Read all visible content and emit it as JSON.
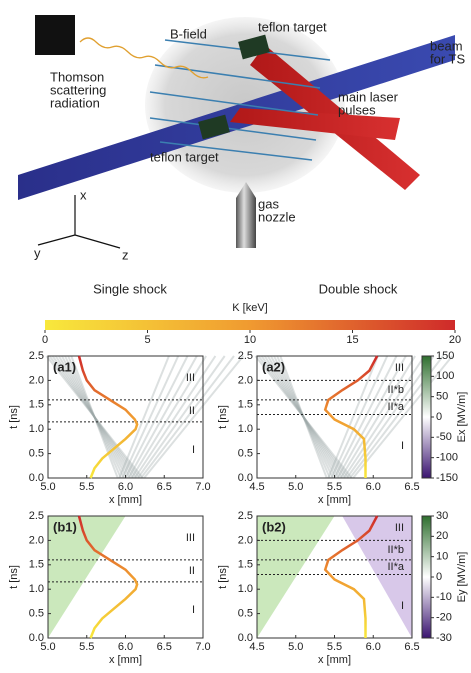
{
  "schematic": {
    "labels": [
      [
        "B-field"
      ],
      [
        "teflon target"
      ],
      [
        "beam",
        "for TS"
      ],
      [
        "Thomson",
        "scattering",
        "radiation"
      ],
      [
        "main laser",
        "pulses"
      ],
      [
        "teflon target"
      ],
      [
        "gas",
        "nozzle"
      ]
    ],
    "axes": [
      "x",
      "y",
      "z"
    ]
  },
  "column_titles": [
    "Single shock",
    "Double shock"
  ],
  "colorbar_k": {
    "label": "K [keV]",
    "lim": [
      0,
      20
    ],
    "ticks": [
      0,
      5,
      10,
      15,
      20
    ],
    "colors": [
      "#f8e83c",
      "#f09a30",
      "#cf2a2a"
    ]
  },
  "chart_data": [
    {
      "type": "line",
      "label": "(a1)",
      "xlabel": "x [mm]",
      "ylabel": "t [ns]",
      "xlim": [
        5,
        7
      ],
      "xticks": [
        {
          "value": 5,
          "label": "5.0"
        },
        {
          "value": 5.5,
          "label": "5.5"
        },
        {
          "value": 6,
          "label": "6.0"
        },
        {
          "value": 6.5,
          "label": "6.5"
        },
        {
          "value": 7,
          "label": "7.0"
        }
      ],
      "ylim": [
        0,
        2.5
      ],
      "yticks": [
        {
          "value": 0,
          "label": "0.0"
        },
        {
          "value": 0.5,
          "label": "0.5"
        },
        {
          "value": 1,
          "label": "1.0"
        },
        {
          "value": 1.5,
          "label": "1.5"
        },
        {
          "value": 2,
          "label": "2.0"
        },
        {
          "value": 2.5,
          "label": "2.5"
        }
      ],
      "hlines": [
        1.6,
        1.15
      ],
      "regions": [
        "III",
        "II",
        "I"
      ],
      "series": [
        {
          "x": [
            5.55,
            5.6,
            5.7,
            5.85,
            6.0,
            6.13,
            6.15,
            6.12,
            6.0,
            5.8,
            5.6,
            5.5,
            5.45,
            5.4
          ],
          "values": [
            0,
            0.2,
            0.4,
            0.6,
            0.8,
            1.0,
            1.1,
            1.2,
            1.4,
            1.6,
            1.8,
            2.0,
            2.2,
            2.5
          ]
        }
      ]
    },
    {
      "type": "line",
      "label": "(a2)",
      "xlabel": "x [mm]",
      "ylabel": "t [ns]",
      "xlim": [
        4.5,
        6.5
      ],
      "xticks": [
        {
          "value": 4.5,
          "label": "4.5"
        },
        {
          "value": 5,
          "label": "5.0"
        },
        {
          "value": 5.5,
          "label": "5.5"
        },
        {
          "value": 6,
          "label": "6.0"
        },
        {
          "value": 6.5,
          "label": "6.5"
        }
      ],
      "ylim": [
        0,
        2.5
      ],
      "yticks": [
        {
          "value": 0,
          "label": "0.0"
        },
        {
          "value": 0.5,
          "label": "0.5"
        },
        {
          "value": 1,
          "label": "1.0"
        },
        {
          "value": 1.5,
          "label": "1.5"
        },
        {
          "value": 2,
          "label": "2.0"
        },
        {
          "value": 2.5,
          "label": "2.5"
        }
      ],
      "hlines": [
        2.0,
        1.6,
        1.3
      ],
      "regions": [
        "III",
        "II*b",
        "II*a",
        "I"
      ],
      "series": [
        {
          "x": [
            5.9,
            5.9,
            5.88,
            5.75,
            5.5,
            5.38,
            5.42,
            5.6,
            5.8,
            5.95,
            6.05
          ],
          "values": [
            0,
            0.4,
            0.8,
            1.0,
            1.2,
            1.4,
            1.6,
            1.8,
            2.0,
            2.2,
            2.5
          ]
        }
      ],
      "colorbar": {
        "label": "Ex [MV/m]",
        "lim": [
          -150,
          150
        ],
        "ticks": [
          150,
          100,
          50,
          0,
          -50,
          -100,
          -150
        ],
        "colors": [
          "#2f6f2f",
          "#ffffff",
          "#3a1470"
        ]
      }
    },
    {
      "type": "line",
      "label": "(b1)",
      "xlabel": "x [mm]",
      "ylabel": "t [ns]",
      "xlim": [
        5,
        7
      ],
      "xticks": [
        {
          "value": 5,
          "label": "5.0"
        },
        {
          "value": 5.5,
          "label": "5.5"
        },
        {
          "value": 6,
          "label": "6.0"
        },
        {
          "value": 6.5,
          "label": "6.5"
        },
        {
          "value": 7,
          "label": "7.0"
        }
      ],
      "ylim": [
        0,
        2.5
      ],
      "yticks": [
        {
          "value": 0,
          "label": "0.0"
        },
        {
          "value": 0.5,
          "label": "0.5"
        },
        {
          "value": 1,
          "label": "1.0"
        },
        {
          "value": 1.5,
          "label": "1.5"
        },
        {
          "value": 2,
          "label": "2.0"
        },
        {
          "value": 2.5,
          "label": "2.5"
        }
      ],
      "hlines": [
        1.6,
        1.15
      ],
      "regions": [
        "III",
        "II",
        "I"
      ],
      "series": [
        {
          "x": [
            5.55,
            5.6,
            5.7,
            5.85,
            6.0,
            6.13,
            6.15,
            6.12,
            6.0,
            5.8,
            5.6,
            5.5,
            5.45,
            5.4
          ],
          "values": [
            0,
            0.2,
            0.4,
            0.6,
            0.8,
            1.0,
            1.1,
            1.2,
            1.4,
            1.6,
            1.8,
            2.0,
            2.2,
            2.5
          ]
        }
      ]
    },
    {
      "type": "line",
      "label": "(b2)",
      "xlabel": "x [mm]",
      "ylabel": "t [ns]",
      "xlim": [
        4.5,
        6.5
      ],
      "xticks": [
        {
          "value": 4.5,
          "label": "4.5"
        },
        {
          "value": 5,
          "label": "5.0"
        },
        {
          "value": 5.5,
          "label": "5.5"
        },
        {
          "value": 6,
          "label": "6.0"
        },
        {
          "value": 6.5,
          "label": "6.5"
        }
      ],
      "ylim": [
        0,
        2.5
      ],
      "yticks": [
        {
          "value": 0,
          "label": "0.0"
        },
        {
          "value": 0.5,
          "label": "0.5"
        },
        {
          "value": 1,
          "label": "1.0"
        },
        {
          "value": 1.5,
          "label": "1.5"
        },
        {
          "value": 2,
          "label": "2.0"
        },
        {
          "value": 2.5,
          "label": "2.5"
        }
      ],
      "hlines": [
        2.0,
        1.6,
        1.3
      ],
      "regions": [
        "III",
        "II*b",
        "II*a",
        "I"
      ],
      "series": [
        {
          "x": [
            5.9,
            5.9,
            5.88,
            5.75,
            5.5,
            5.38,
            5.42,
            5.6,
            5.8,
            5.95,
            6.05
          ],
          "values": [
            0,
            0.4,
            0.8,
            1.0,
            1.2,
            1.4,
            1.6,
            1.8,
            2.0,
            2.2,
            2.5
          ]
        }
      ],
      "colorbar": {
        "label": "Ey [MV/m]",
        "lim": [
          -30,
          30
        ],
        "ticks": [
          30,
          20,
          10,
          0,
          -10,
          -20,
          -30
        ],
        "colors": [
          "#2f6f2f",
          "#ffffff",
          "#3a1470"
        ]
      }
    }
  ]
}
